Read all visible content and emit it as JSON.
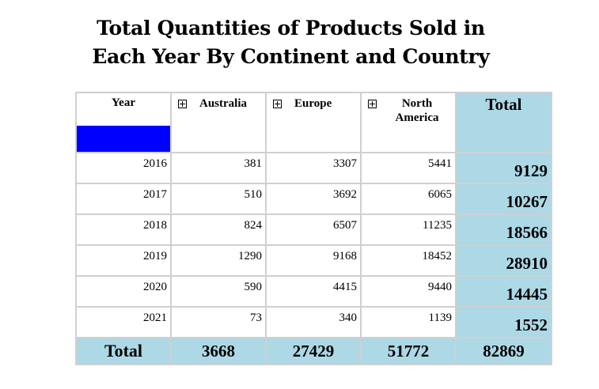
{
  "title": {
    "line1": "Total Quantities of Products Sold in",
    "line2": "Each Year By Continent and Country"
  },
  "colors": {
    "total_bg": "#add8e6",
    "year_swatch": "#0000ff",
    "grid": "#d0d0d0"
  },
  "table": {
    "headers": {
      "year": "Year",
      "australia": "Australia",
      "europe": "Europe",
      "north_america": "North America",
      "total": "Total"
    },
    "rows": [
      {
        "year": "2016",
        "australia": "381",
        "europe": "3307",
        "north_america": "5441",
        "total": "9129"
      },
      {
        "year": "2017",
        "australia": "510",
        "europe": "3692",
        "north_america": "6065",
        "total": "10267"
      },
      {
        "year": "2018",
        "australia": "824",
        "europe": "6507",
        "north_america": "11235",
        "total": "18566"
      },
      {
        "year": "2019",
        "australia": "1290",
        "europe": "9168",
        "north_america": "18452",
        "total": "28910"
      },
      {
        "year": "2020",
        "australia": "590",
        "europe": "4415",
        "north_america": "9440",
        "total": "14445"
      },
      {
        "year": "2021",
        "australia": "73",
        "europe": "340",
        "north_america": "1139",
        "total": "1552"
      }
    ],
    "footer": {
      "label": "Total",
      "australia": "3668",
      "europe": "27429",
      "north_america": "51772",
      "total": "82869"
    },
    "expander_icon": "plus-box-icon"
  }
}
